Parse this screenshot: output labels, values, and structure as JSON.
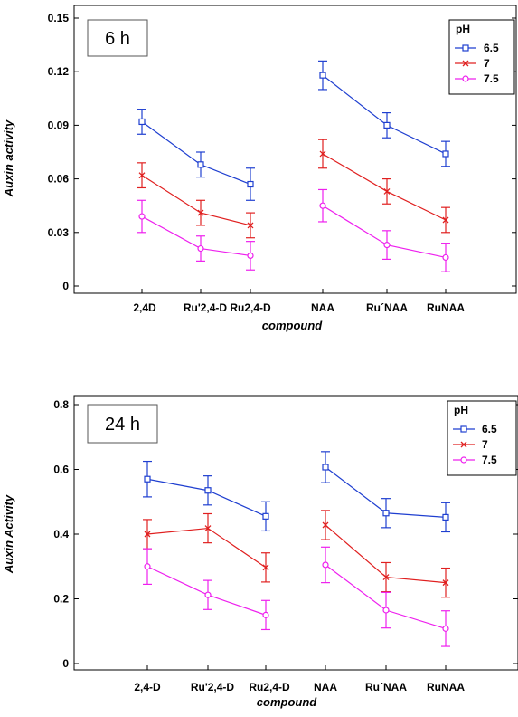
{
  "chart_data": [
    {
      "type": "line",
      "time_label": "6 h",
      "xlabel": "compound",
      "ylabel": "Auxin activity",
      "categories": [
        "2,4D",
        "Ru'2,4-D",
        "Ru2,4-D",
        "NAA",
        "Ru´NAA",
        "RuNAA"
      ],
      "ylim": [
        0,
        0.15
      ],
      "yticks": [
        0,
        0.03,
        0.06,
        0.09,
        0.12,
        0.15
      ],
      "ytick_labels": [
        "0",
        "0.03",
        "0.06",
        "0.09",
        "0.12",
        "0.15"
      ],
      "legend": {
        "title": "pH",
        "position": "top-right"
      },
      "grid": false,
      "series": [
        {
          "name": "6.5",
          "color": "#1f3fd0",
          "marker": "square",
          "segments": [
            [
              0,
              1,
              2
            ],
            [
              3,
              4,
              5
            ]
          ],
          "values": [
            0.092,
            0.068,
            0.057,
            0.118,
            0.09,
            0.074
          ],
          "err": [
            0.007,
            0.007,
            0.009,
            0.008,
            0.007,
            0.007
          ]
        },
        {
          "name": "7",
          "color": "#e02020",
          "marker": "x",
          "segments": [
            [
              0,
              1,
              2
            ],
            [
              3,
              4,
              5
            ]
          ],
          "values": [
            0.062,
            0.041,
            0.034,
            0.074,
            0.053,
            0.037
          ],
          "err": [
            0.007,
            0.007,
            0.007,
            0.008,
            0.007,
            0.007
          ]
        },
        {
          "name": "7.5",
          "color": "#ee20ee",
          "marker": "circle",
          "segments": [
            [
              0,
              1,
              2
            ],
            [
              3,
              4,
              5
            ]
          ],
          "values": [
            0.039,
            0.021,
            0.017,
            0.045,
            0.023,
            0.016
          ],
          "err": [
            0.009,
            0.007,
            0.008,
            0.009,
            0.008,
            0.008
          ]
        }
      ]
    },
    {
      "type": "line",
      "time_label": "24 h",
      "xlabel": "compound",
      "ylabel": "Auxin Activity",
      "categories": [
        "2,4-D",
        "Ru'2,4-D",
        "Ru2,4-D",
        "NAA",
        "Ru´NAA",
        "RuNAA"
      ],
      "ylim": [
        0,
        0.8
      ],
      "yticks": [
        0,
        0.2,
        0.4,
        0.6,
        0.8
      ],
      "ytick_labels": [
        "0",
        "0.2",
        "0.4",
        "0.6",
        "0.8"
      ],
      "legend": {
        "title": "pH",
        "position": "top-right"
      },
      "grid": false,
      "series": [
        {
          "name": "6.5",
          "color": "#1f3fd0",
          "marker": "square",
          "segments": [
            [
              0,
              1,
              2
            ],
            [
              3,
              4,
              5
            ]
          ],
          "values": [
            0.57,
            0.535,
            0.455,
            0.607,
            0.465,
            0.452
          ],
          "err": [
            0.055,
            0.045,
            0.045,
            0.048,
            0.045,
            0.045
          ]
        },
        {
          "name": "7",
          "color": "#e02020",
          "marker": "x",
          "segments": [
            [
              0,
              1,
              2
            ],
            [
              3,
              4,
              5
            ]
          ],
          "values": [
            0.4,
            0.418,
            0.297,
            0.428,
            0.267,
            0.25
          ],
          "err": [
            0.045,
            0.045,
            0.045,
            0.045,
            0.045,
            0.045
          ]
        },
        {
          "name": "7.5",
          "color": "#ee20ee",
          "marker": "circle",
          "segments": [
            [
              0,
              0
            ],
            [
              0,
              1,
              2
            ],
            [
              3,
              4,
              5
            ]
          ],
          "values": [
            0.3,
            0.212,
            0.15,
            0.305,
            0.165,
            0.108
          ],
          "err": [
            0.055,
            0.045,
            0.045,
            0.055,
            0.055,
            0.055
          ]
        }
      ]
    }
  ]
}
